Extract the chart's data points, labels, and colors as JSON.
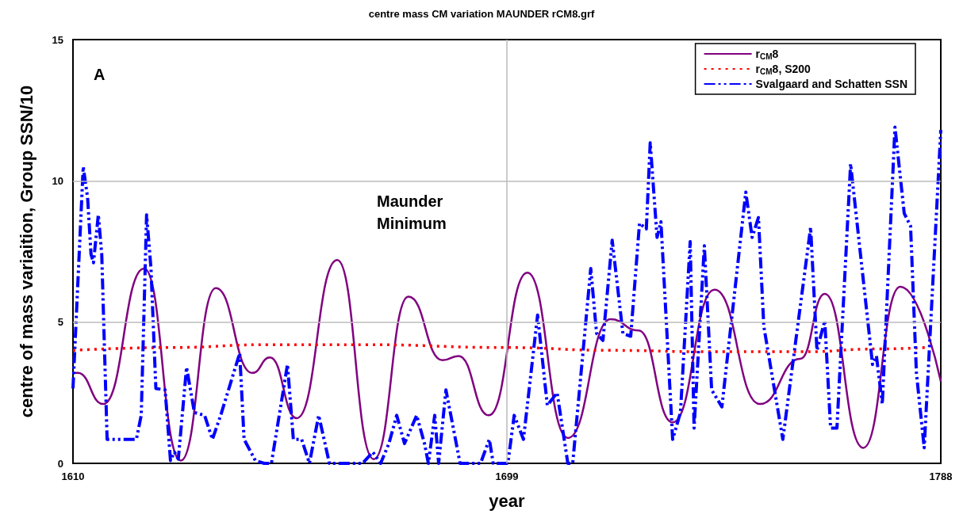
{
  "chart_data": {
    "type": "line",
    "title": "centre mass CM variation MAUNDER rCM8.grf",
    "xlabel": "year",
    "ylabel": "centre of mass variaition, Group SSN/10",
    "annotations": [
      "A",
      "Maunder Minimum"
    ],
    "xlim": [
      1610,
      1788
    ],
    "xticks": [
      1610,
      1699,
      1788
    ],
    "ylim": [
      0,
      15
    ],
    "yticks": [
      0,
      5,
      10,
      15
    ],
    "grid": true,
    "legend": "top right",
    "marker": "none",
    "series": [
      {
        "name": "r$_{CM}$8",
        "color": "#800080",
        "line_style": "solid",
        "x": [
          1610,
          1611,
          1616.2,
          1624.6,
          1632.1,
          1639.3,
          1646.8,
          1650.4,
          1655.9,
          1664.2,
          1671.7,
          1678.8,
          1685.8,
          1689.1,
          1695.3,
          1703.2,
          1711.5,
          1720.3,
          1726,
          1733,
          1741.6,
          1750.9,
          1759.2,
          1764.2,
          1772.1,
          1779.7,
          1788
        ],
        "values": [
          3.2,
          3.2,
          2.1,
          6.9,
          0.1,
          6.2,
          3.2,
          3.75,
          1.6,
          7.2,
          0.15,
          5.9,
          3.65,
          3.8,
          1.7,
          6.75,
          0.9,
          5.1,
          4.7,
          1.45,
          6.15,
          2.1,
          3.7,
          6.0,
          0.55,
          6.25,
          2.9
        ]
      },
      {
        "name": "r$_{CM}$8, S200",
        "color": "#ff0000",
        "line_style": "dotted",
        "x": [
          1610,
          1630,
          1650,
          1670,
          1699,
          1720,
          1740,
          1760,
          1775,
          1785
        ],
        "values": [
          4.0,
          4.1,
          4.2,
          4.2,
          4.1,
          4.0,
          3.95,
          3.95,
          4.05,
          4.1
        ]
      },
      {
        "name": "Svalgaard and Schatten SSN",
        "color": "#0000ff",
        "line_style": "dashdot",
        "x": [
          1610,
          1612.1,
          1613,
          1613.7,
          1614.2,
          1615.2,
          1615.9,
          1617,
          1623,
          1624,
          1625.1,
          1626,
          1627,
          1628.9,
          1630,
          1630.8,
          1631.6,
          1633.3,
          1634.9,
          1637,
          1638.6,
          1640.3,
          1644.2,
          1645.1,
          1647.4,
          1649.2,
          1650.7,
          1654,
          1655.2,
          1656.9,
          1658.5,
          1660.4,
          1662.6,
          1669.4,
          1671.5,
          1673.1,
          1674.8,
          1676.4,
          1678,
          1680.5,
          1682.1,
          1682.9,
          1684.2,
          1685,
          1686.5,
          1689.4,
          1693.6,
          1695.4,
          1696.2,
          1699.2,
          1700.5,
          1702.4,
          1705.3,
          1707.3,
          1709.3,
          1711.5,
          1712.5,
          1716.2,
          1717.4,
          1718.7,
          1720.6,
          1722.8,
          1724.4,
          1726.2,
          1727.6,
          1728.4,
          1729.8,
          1730.6,
          1733,
          1734.6,
          1736.6,
          1737.4,
          1739.5,
          1741,
          1743.1,
          1748,
          1749.3,
          1750.6,
          1751.7,
          1755.6,
          1761.3,
          1762.6,
          1764.2,
          1765.4,
          1766.7,
          1769.5,
          1774,
          1774.8,
          1776,
          1778.6,
          1780.5,
          1781.8,
          1783,
          1784.6,
          1788
        ],
        "values": [
          2.65,
          10.5,
          9.4,
          7.4,
          7.1,
          8.8,
          7.4,
          0.85,
          0.85,
          1.7,
          8.8,
          6.9,
          2.65,
          2.6,
          0.1,
          0.4,
          0.15,
          3.4,
          1.8,
          1.7,
          0.85,
          1.7,
          3.9,
          0.85,
          0.1,
          0,
          0,
          3.5,
          0.85,
          0.85,
          0,
          1.7,
          0,
          0,
          0.4,
          0,
          0.7,
          1.7,
          0.7,
          1.7,
          0.7,
          0,
          1.7,
          0,
          2.6,
          0,
          0,
          0.85,
          0,
          0,
          1.7,
          0.85,
          5.25,
          2.05,
          2.5,
          0,
          0,
          6.9,
          4.6,
          4.35,
          7.9,
          4.6,
          4.5,
          8.5,
          8.3,
          11.35,
          8,
          8.55,
          0.85,
          1.8,
          7.85,
          1.25,
          7.7,
          2.6,
          2.0,
          9.6,
          8,
          8.7,
          4.85,
          0.85,
          8.35,
          4.0,
          5.05,
          1.25,
          1.25,
          10.6,
          3.5,
          3.8,
          2.1,
          11.9,
          8.85,
          8.4,
          3.2,
          0.55,
          11.8
        ]
      }
    ]
  }
}
